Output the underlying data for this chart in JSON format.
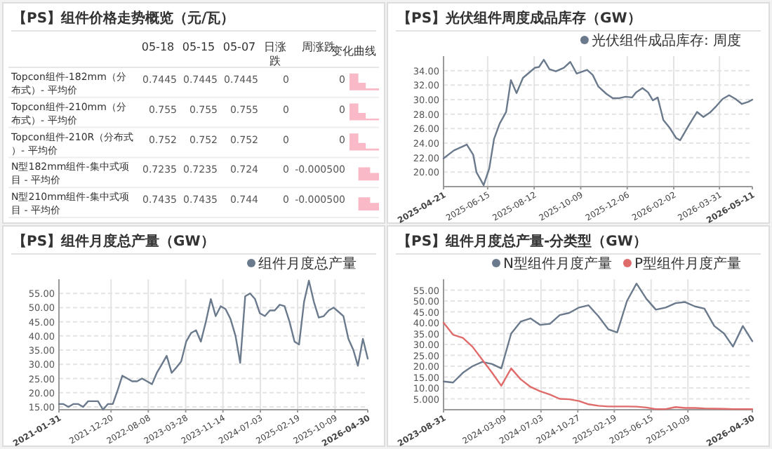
{
  "chart_data": [
    {
      "type": "other",
      "title": "【PS】组件价格走势概览（元/瓦）",
      "data_labels": true,
      "categories": [
        "Topcon组件-182mm（分布式）- 平均价",
        "Topcon组件-210mm（分布式）- 平均价",
        "Topcon组件-210R（分布式）- 平均价",
        "N型182mm组件-集中式项目 - 平均价",
        "N型210mm组件-集中式项目 - 平均价"
      ],
      "series": [
        {
          "name": "05-18",
          "values": [
            0.7445,
            0.755,
            0.752,
            0.7235,
            0.7435
          ]
        },
        {
          "name": "05-15",
          "values": [
            0.7445,
            0.755,
            0.752,
            0.7235,
            0.7435
          ]
        },
        {
          "name": "05-07",
          "values": [
            0.7445,
            0.755,
            0.752,
            0.724,
            0.744
          ]
        },
        {
          "name": "日涨跌",
          "values": [
            0,
            0,
            0,
            0,
            0
          ]
        },
        {
          "name": "周涨跌",
          "values": [
            0,
            0,
            0,
            -0.0005,
            -0.0005
          ],
          "value_labels": [
            "0",
            "0",
            "0",
            "-0.000500",
            "-0.000500"
          ]
        }
      ],
      "annotations": [
        "变化曲线"
      ]
    },
    {
      "type": "line",
      "title": "【PS】光伏组件周度成品库存（GW）",
      "grid": true,
      "legend": "top right",
      "xlim": [
        "2025-04-21",
        "2026-05-11"
      ],
      "xticks": [
        "2025-04-21",
        "2025-06-15",
        "2025-08-12",
        "2025-10-09",
        "2025-12-06",
        "2026-02-02",
        "2026-03-31",
        "2026-05-11"
      ],
      "ylim": [
        18,
        36
      ],
      "yticks": [
        {
          "value": 20,
          "label": "20.00"
        },
        {
          "value": 22,
          "label": "22.00"
        },
        {
          "value": 24,
          "label": "24.00"
        },
        {
          "value": 26,
          "label": "26.00"
        },
        {
          "value": 28,
          "label": "28.00"
        },
        {
          "value": 30,
          "label": "30.00"
        },
        {
          "value": 32,
          "label": "32.00"
        },
        {
          "value": 34,
          "label": "34.00"
        }
      ],
      "x": [
        "2025-04-21",
        "2025-05-04",
        "2025-05-20",
        "2025-05-28",
        "2025-06-01",
        "2025-06-10",
        "2025-06-17",
        "2025-06-23",
        "2025-06-30",
        "2025-07-08",
        "2025-07-14",
        "2025-07-21",
        "2025-07-29",
        "2025-08-13",
        "2025-08-18",
        "2025-08-24",
        "2025-08-31",
        "2025-09-08",
        "2025-09-18",
        "2025-09-26",
        "2025-10-04",
        "2025-10-17",
        "2025-10-24",
        "2025-10-31",
        "2025-11-10",
        "2025-11-18",
        "2025-11-26",
        "2025-12-04",
        "2025-12-12",
        "2025-12-17",
        "2025-12-25",
        "2026-01-01",
        "2026-01-07",
        "2026-01-13",
        "2026-01-20",
        "2026-01-28",
        "2026-02-05",
        "2026-02-10",
        "2026-02-21",
        "2026-03-03",
        "2026-03-11",
        "2026-03-19",
        "2026-03-27",
        "2026-04-04",
        "2026-04-12",
        "2026-04-20",
        "2026-04-28",
        "2026-05-06",
        "2026-05-11"
      ],
      "series": [
        {
          "name": "光伏组件成品库存: 周度",
          "color": "#6a7a8c",
          "values": [
            21.9,
            23.0,
            23.8,
            22.4,
            20.0,
            18.2,
            20.5,
            24.6,
            26.7,
            28.3,
            32.7,
            30.9,
            33.0,
            34.4,
            34.5,
            35.5,
            34.2,
            33.9,
            34.4,
            35.2,
            33.6,
            34.1,
            33.4,
            31.8,
            30.8,
            30.2,
            30.2,
            30.4,
            30.3,
            31.0,
            31.6,
            31.0,
            29.9,
            30.3,
            27.2,
            26.1,
            24.7,
            24.4,
            26.5,
            28.3,
            27.6,
            28.2,
            29.1,
            30.1,
            30.6,
            30.1,
            29.4,
            29.7,
            30.0
          ]
        }
      ]
    },
    {
      "type": "line",
      "title": "【PS】组件月度总产量（GW）",
      "grid": true,
      "legend": "top right",
      "xlim": [
        "2021-01-31",
        "2026-04-30"
      ],
      "xticks": [
        "2021-01-31",
        "2021-12-20",
        "2022-08-08",
        "2023-03-28",
        "2023-11-14",
        "2024-07-03",
        "2025-02-19",
        "2025-10-09",
        "2026-04-30"
      ],
      "ylim": [
        14,
        60
      ],
      "yticks": [
        {
          "value": 15,
          "label": "15.00"
        },
        {
          "value": 20,
          "label": "20.00"
        },
        {
          "value": 25,
          "label": "25.00"
        },
        {
          "value": 30,
          "label": "30.00"
        },
        {
          "value": 35,
          "label": "35.00"
        },
        {
          "value": 40,
          "label": "40.00"
        },
        {
          "value": 45,
          "label": "45.00"
        },
        {
          "value": 50,
          "label": "50.00"
        },
        {
          "value": 55,
          "label": "55.00"
        }
      ],
      "x": [
        "2021-01-31",
        "2021-02-28",
        "2021-03-31",
        "2021-04-30",
        "2021-05-31",
        "2021-06-30",
        "2021-07-31",
        "2021-08-31",
        "2021-09-30",
        "2021-10-31",
        "2021-11-30",
        "2021-12-31",
        "2022-01-31",
        "2022-02-28",
        "2022-03-31",
        "2022-04-30",
        "2022-05-31",
        "2022-06-30",
        "2022-07-31",
        "2022-08-31",
        "2022-09-30",
        "2022-10-31",
        "2022-11-30",
        "2022-12-31",
        "2023-01-31",
        "2023-02-28",
        "2023-03-31",
        "2023-04-30",
        "2023-05-31",
        "2023-06-30",
        "2023-07-31",
        "2023-08-31",
        "2023-09-30",
        "2023-10-31",
        "2023-11-30",
        "2023-12-31",
        "2024-01-31",
        "2024-02-29",
        "2024-03-31",
        "2024-04-30",
        "2024-05-31",
        "2024-06-30",
        "2024-07-31",
        "2024-08-31",
        "2024-09-30",
        "2024-10-31",
        "2024-11-30",
        "2024-12-31",
        "2025-01-31",
        "2025-02-28",
        "2025-03-31",
        "2025-04-30",
        "2025-05-31",
        "2025-06-30",
        "2025-07-31",
        "2025-08-31",
        "2025-09-30",
        "2025-10-31",
        "2025-11-30",
        "2025-12-31",
        "2026-01-31",
        "2026-02-28",
        "2026-03-31",
        "2026-04-30"
      ],
      "series": [
        {
          "name": "组件月度总产量",
          "color": "#6a7a8c",
          "values": [
            16,
            16,
            15,
            16,
            16,
            15,
            17,
            17,
            17,
            14,
            16,
            16,
            21,
            26,
            25,
            24,
            24,
            25,
            24,
            23,
            27,
            30,
            33,
            27,
            29,
            31,
            38,
            41,
            42,
            38,
            45,
            53,
            47,
            50.5,
            49.5,
            46,
            40,
            30.5,
            54,
            55,
            53,
            48,
            47,
            49,
            49,
            51,
            50.5,
            45,
            38,
            37,
            52,
            59.5,
            52,
            46.5,
            47,
            49,
            50,
            48.5,
            47,
            39,
            35,
            29.5,
            39,
            32
          ]
        }
      ]
    },
    {
      "type": "line",
      "title": "【PS】组件月度总产量-分类型（GW）",
      "grid": true,
      "legend": "top right",
      "xlim": [
        "2023-08-31",
        "2026-04-30"
      ],
      "xticks": [
        "2023-08-31",
        "2024-03-09",
        "2024-07-03",
        "2024-10-27",
        "2025-02-19",
        "2025-06-15",
        "2025-10-09",
        "2026-04-30"
      ],
      "ylim": [
        0,
        60
      ],
      "yticks": [
        {
          "value": 5,
          "label": "5.000"
        },
        {
          "value": 10,
          "label": "10.00"
        },
        {
          "value": 15,
          "label": "15.00"
        },
        {
          "value": 20,
          "label": "20.00"
        },
        {
          "value": 25,
          "label": "25.00"
        },
        {
          "value": 30,
          "label": "30.00"
        },
        {
          "value": 35,
          "label": "35.00"
        },
        {
          "value": 40,
          "label": "40.00"
        },
        {
          "value": 45,
          "label": "45.00"
        },
        {
          "value": 50,
          "label": "50.00"
        },
        {
          "value": 55,
          "label": "55.00"
        }
      ],
      "x": [
        "2023-08-31",
        "2023-09-30",
        "2023-10-31",
        "2023-11-30",
        "2023-12-31",
        "2024-01-31",
        "2024-02-29",
        "2024-03-31",
        "2024-04-30",
        "2024-05-31",
        "2024-06-30",
        "2024-07-31",
        "2024-08-31",
        "2024-09-30",
        "2024-10-31",
        "2024-11-30",
        "2024-12-31",
        "2025-01-31",
        "2025-02-28",
        "2025-03-31",
        "2025-04-30",
        "2025-05-31",
        "2025-06-30",
        "2025-07-31",
        "2025-08-31",
        "2025-09-30",
        "2025-10-31",
        "2025-11-30",
        "2025-12-31",
        "2026-01-31",
        "2026-02-28",
        "2026-03-31",
        "2026-04-30"
      ],
      "series": [
        {
          "name": "N型组件月度产量",
          "color": "#6a7a8c",
          "values": [
            13,
            12.5,
            17,
            20,
            22,
            21,
            19,
            35,
            40.5,
            42,
            39,
            39.5,
            43.5,
            44.5,
            47,
            48,
            43,
            37,
            35.5,
            50,
            58,
            51,
            46,
            47,
            49,
            49.5,
            47.5,
            46.5,
            38.5,
            35,
            29,
            38.5,
            31.5
          ]
        },
        {
          "name": "P型组件月度产量",
          "color": "#e06b6b",
          "values": [
            40,
            34.5,
            33,
            29,
            23,
            17,
            11,
            19,
            14,
            10.5,
            8.5,
            7,
            5,
            4.8,
            4,
            2.5,
            1.8,
            1.5,
            1.5,
            1.5,
            1.4,
            1,
            0.3,
            0.3,
            1.2,
            0.8,
            0.8,
            0.6,
            0.5,
            0.4,
            0.3,
            0.3,
            0.3
          ]
        }
      ]
    }
  ]
}
